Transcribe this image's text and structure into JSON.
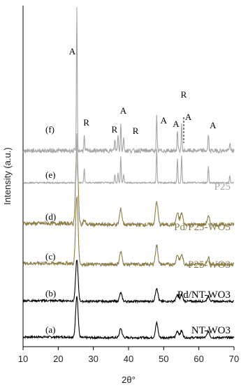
{
  "chart_data": {
    "type": "line",
    "title": "",
    "xlabel": "2θ°",
    "ylabel": "Intensity (a.u.)",
    "xlim": [
      10,
      70
    ],
    "xticks": [
      10,
      20,
      30,
      40,
      50,
      60,
      70
    ],
    "grid": false,
    "colors": {
      "black": "#000000",
      "gold": "#8c7d48",
      "gray": "#a6a6a6"
    },
    "series": [
      {
        "letter": "(a)",
        "label": "NT-WO3",
        "color": "black",
        "peaks": [
          [
            25.3,
            1.0
          ],
          [
            37.8,
            0.22
          ],
          [
            48.0,
            0.35
          ],
          [
            53.9,
            0.16
          ],
          [
            55.1,
            0.16
          ],
          [
            62.7,
            0.15
          ]
        ]
      },
      {
        "letter": "(b)",
        "label": "Pd/NT-WO3",
        "color": "black",
        "peaks": [
          [
            25.3,
            1.0
          ],
          [
            37.8,
            0.2
          ],
          [
            48.0,
            0.32
          ],
          [
            53.9,
            0.15
          ],
          [
            55.1,
            0.15
          ],
          [
            62.7,
            0.12
          ]
        ]
      },
      {
        "letter": "(c)",
        "label": "P25-WO3",
        "color": "gold",
        "peaks": [
          [
            25.3,
            1.0
          ],
          [
            37.8,
            0.18
          ],
          [
            48.0,
            0.28
          ],
          [
            53.9,
            0.14
          ],
          [
            55.1,
            0.14
          ],
          [
            62.7,
            0.1
          ]
        ]
      },
      {
        "letter": "(d)",
        "label": "Pd/P25-WO3",
        "color": "gold",
        "peaks": [
          [
            25.3,
            1.0
          ],
          [
            27.4,
            0.05
          ],
          [
            37.8,
            0.2
          ],
          [
            48.0,
            0.3
          ],
          [
            53.9,
            0.15
          ],
          [
            55.1,
            0.15
          ],
          [
            62.7,
            0.1
          ]
        ]
      },
      {
        "letter": "(e)",
        "label": "P25",
        "color": "gray",
        "peaks": [
          [
            25.3,
            1.0
          ],
          [
            27.4,
            0.3
          ],
          [
            36.1,
            0.18
          ],
          [
            37.0,
            0.2
          ],
          [
            37.8,
            0.55
          ],
          [
            38.6,
            0.18
          ],
          [
            48.0,
            0.7
          ],
          [
            53.9,
            0.5
          ],
          [
            55.1,
            0.55
          ],
          [
            62.7,
            0.35
          ],
          [
            68.8,
            0.15
          ]
        ]
      },
      {
        "letter": "(f)",
        "label": "",
        "color": "gray",
        "peaks": [
          [
            25.3,
            1.0
          ],
          [
            27.4,
            0.1
          ],
          [
            36.1,
            0.08
          ],
          [
            37.0,
            0.12
          ],
          [
            37.8,
            0.2
          ],
          [
            38.6,
            0.1
          ],
          [
            48.0,
            0.24
          ],
          [
            53.9,
            0.15
          ],
          [
            55.1,
            0.18
          ],
          [
            62.7,
            0.12
          ],
          [
            68.8,
            0.06
          ]
        ]
      }
    ],
    "peak_labels": [
      {
        "text": "A",
        "x": 24.0
      },
      {
        "text": "R",
        "x": 28.0
      },
      {
        "text": "R",
        "x": 36.0
      },
      {
        "text": "A",
        "x": 38.5
      },
      {
        "text": "R",
        "x": 42.0
      },
      {
        "text": "A",
        "x": 50.0
      },
      {
        "text": "A",
        "x": 53.5
      },
      {
        "text": "R",
        "x": 55.7
      },
      {
        "text": "A",
        "x": 57.0
      },
      {
        "text": "A",
        "x": 64.0
      }
    ]
  }
}
